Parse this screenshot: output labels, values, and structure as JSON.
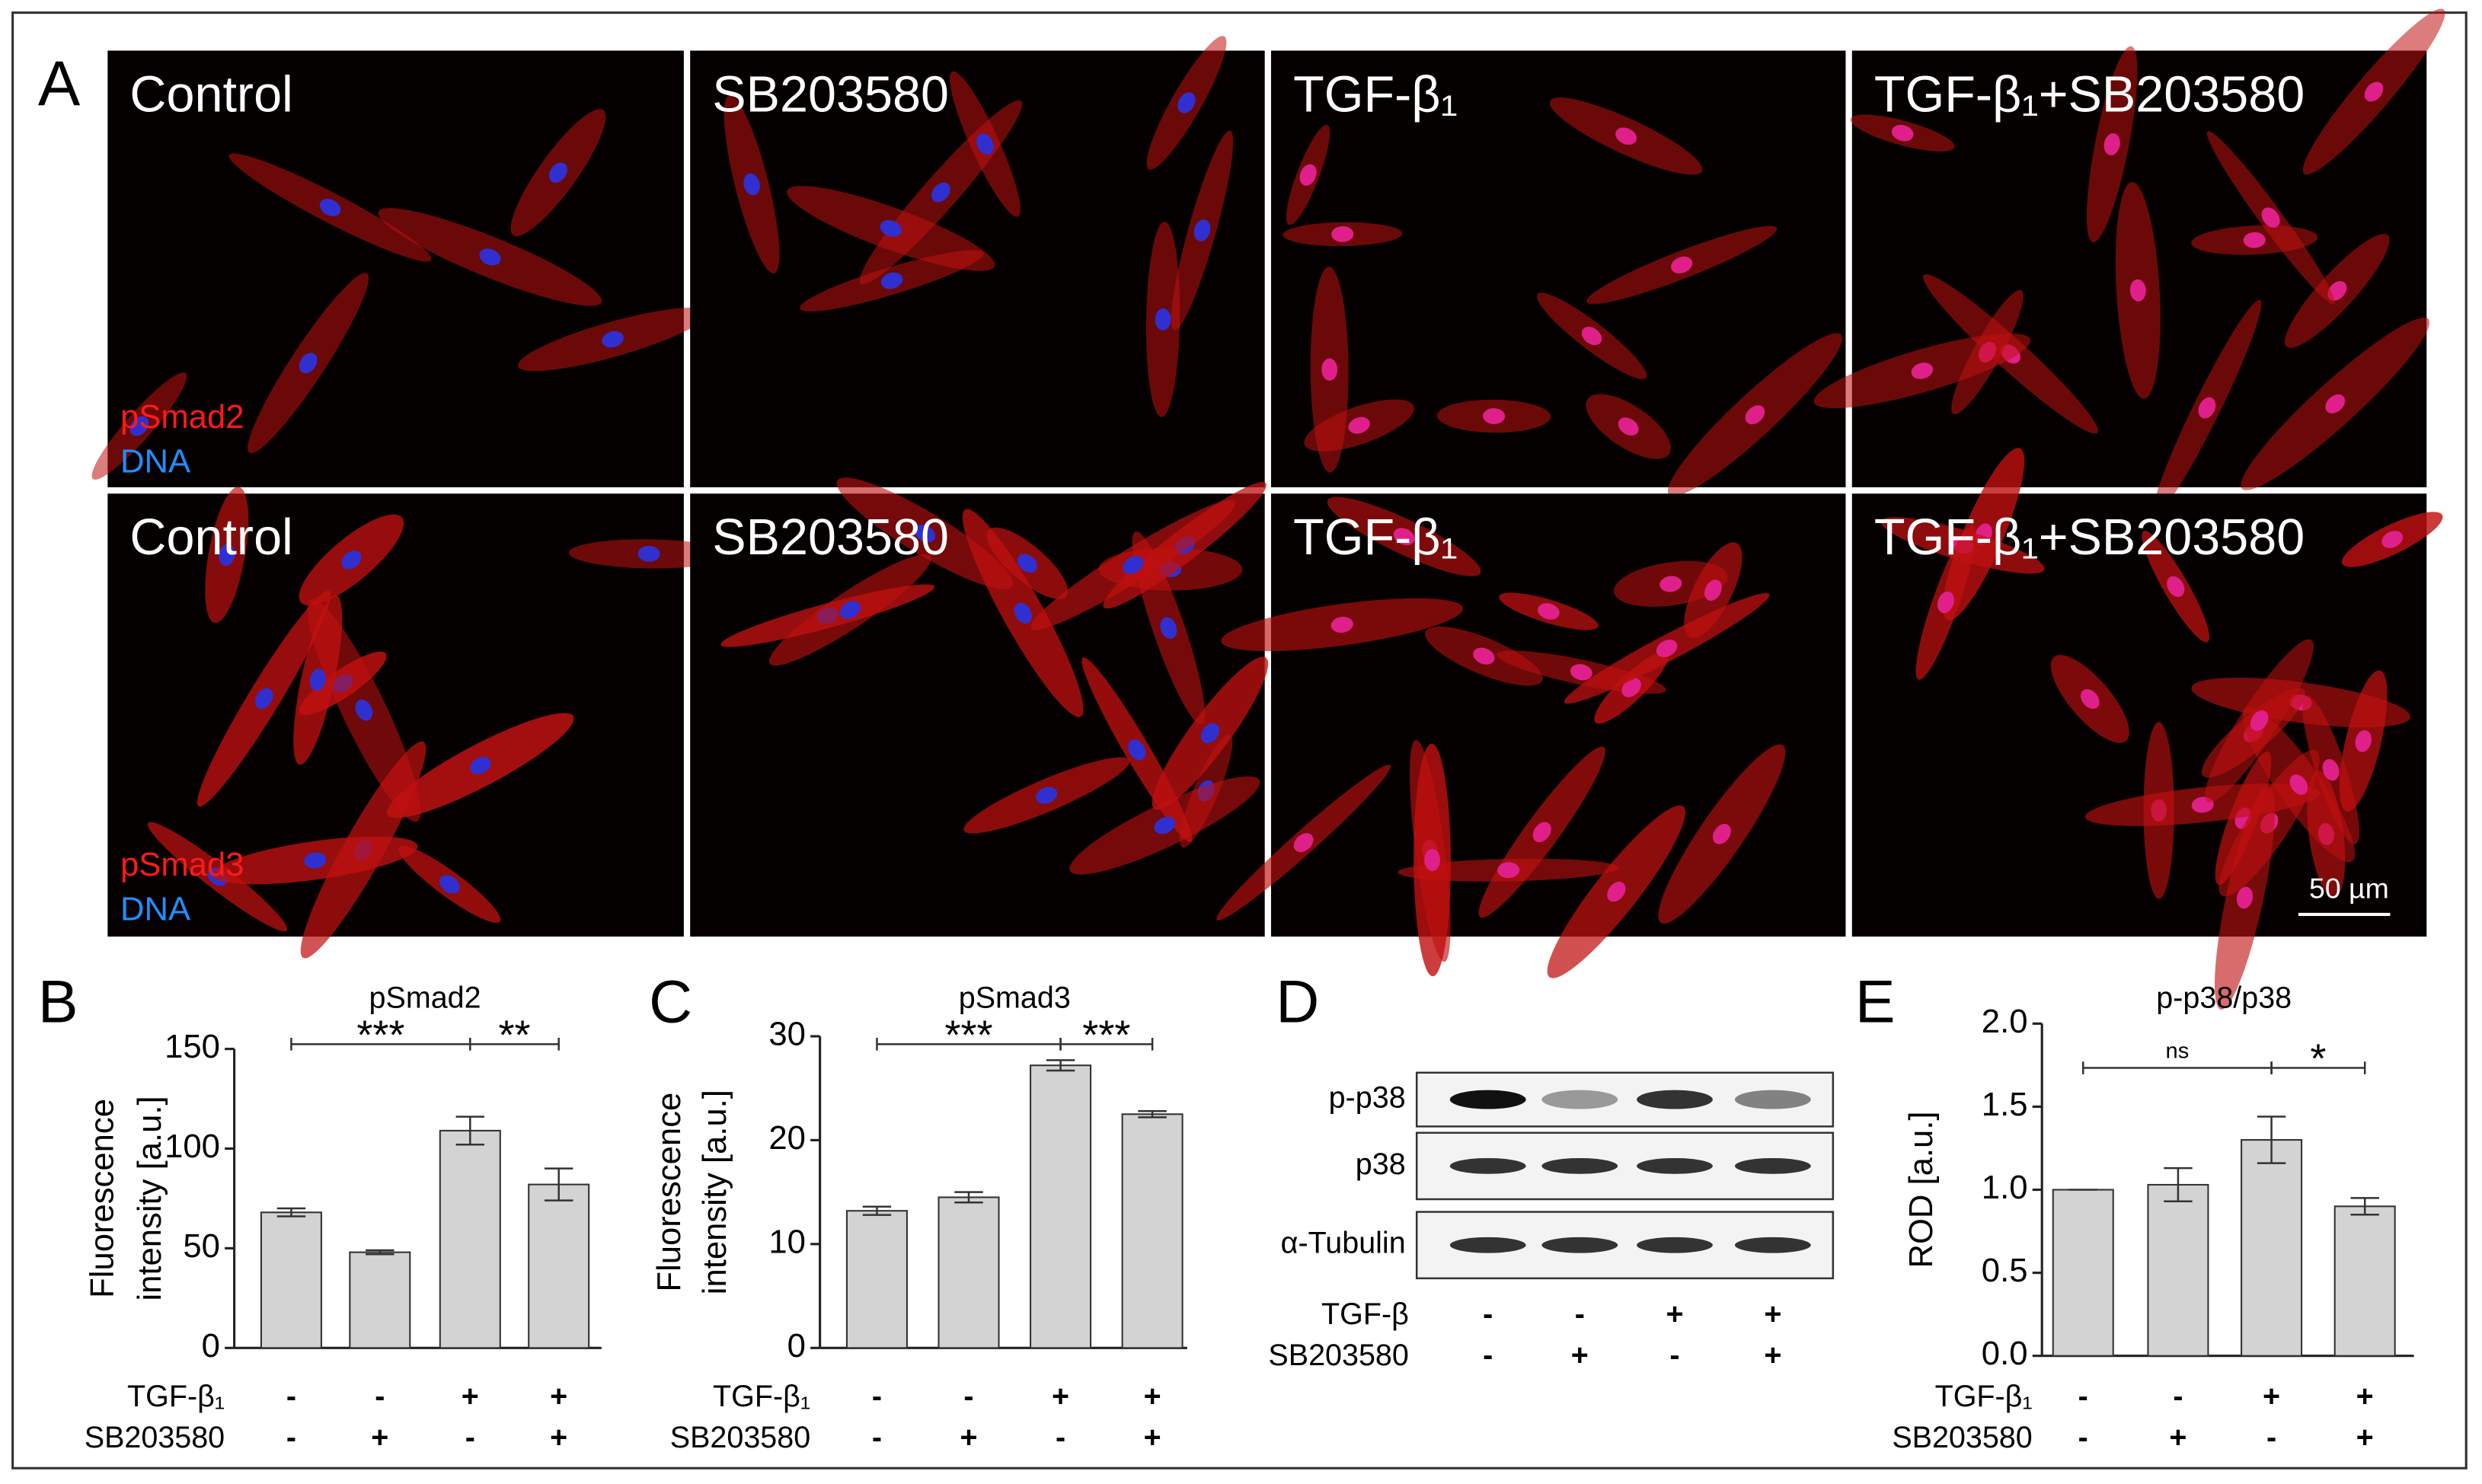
{
  "figure_label": "A",
  "micrographs": {
    "conditions": [
      "Control",
      "SB203580",
      "TGF-β₁",
      "TGF-β₁+SB203580"
    ],
    "rows": [
      {
        "stains": [
          "pSmad2",
          "DNA"
        ]
      },
      {
        "stains": [
          "pSmad3",
          "DNA"
        ]
      }
    ],
    "scale_bar": "50 µm"
  },
  "chart_data": [
    {
      "type": "bar",
      "panel": "B",
      "title": "pSmad2",
      "ylabel": [
        "Fluorescence",
        "intensity [a.u.]"
      ],
      "categories": [
        null,
        null,
        null,
        null
      ],
      "values": [
        68,
        48,
        109,
        82
      ],
      "errors": [
        2,
        1,
        7,
        8
      ],
      "color": "#d3d3d3",
      "ylim": [
        0,
        150
      ],
      "yticks": [
        0,
        50,
        100,
        150
      ],
      "annotations": [
        "***",
        "**"
      ],
      "treatments": [
        {
          "name": "TGF-β₁",
          "signs": [
            "-",
            "-",
            "+",
            "+"
          ]
        },
        {
          "name": "SB203580",
          "signs": [
            "-",
            "+",
            "-",
            "+"
          ]
        }
      ]
    },
    {
      "type": "bar",
      "panel": "C",
      "title": "pSmad3",
      "ylabel": [
        "Fluorescence",
        "intensity [a.u.]"
      ],
      "categories": [
        null,
        null,
        null,
        null
      ],
      "values": [
        13.2,
        14.5,
        27.2,
        22.5
      ],
      "errors": [
        0.4,
        0.5,
        0.5,
        0.3
      ],
      "color": "#d3d3d3",
      "ylim": [
        0,
        30
      ],
      "yticks": [
        0,
        10,
        20,
        30
      ],
      "annotations": [
        "***",
        "***"
      ],
      "treatments": [
        {
          "name": "TGF-β₁",
          "signs": [
            "-",
            "-",
            "+",
            "+"
          ]
        },
        {
          "name": "SB203580",
          "signs": [
            "-",
            "+",
            "-",
            "+"
          ]
        }
      ]
    },
    {
      "type": "bar",
      "panel": "E",
      "title": "p-p38/p38",
      "ylabel": [
        "ROD [a.u.]"
      ],
      "categories": [
        null,
        null,
        null,
        null
      ],
      "values": [
        1.0,
        1.03,
        1.3,
        0.9
      ],
      "errors": [
        0,
        0.1,
        0.14,
        0.05
      ],
      "color": "#d3d3d3",
      "ylim": [
        0,
        2
      ],
      "yticks": [
        {
          "value": 0,
          "label": "0.0"
        },
        0.5,
        {
          "value": 1,
          "label": "1.0"
        },
        1.5,
        {
          "value": 2,
          "label": "2.0"
        }
      ],
      "annotations": [
        "ns",
        "*"
      ],
      "treatments": [
        {
          "name": "TGF-β₁",
          "signs": [
            "-",
            "-",
            "+",
            "+"
          ]
        },
        {
          "name": "SB203580",
          "signs": [
            "-",
            "+",
            "-",
            "+"
          ]
        }
      ]
    }
  ],
  "blot": {
    "panel": "D",
    "rows": [
      "p-p38",
      "p38",
      "α-Tubulin"
    ],
    "treatments": [
      {
        "name": "TGF-β",
        "signs": [
          "-",
          "-",
          "+",
          "+"
        ]
      },
      {
        "name": "SB203580",
        "signs": [
          "-",
          "+",
          "-",
          "+"
        ]
      }
    ]
  }
}
